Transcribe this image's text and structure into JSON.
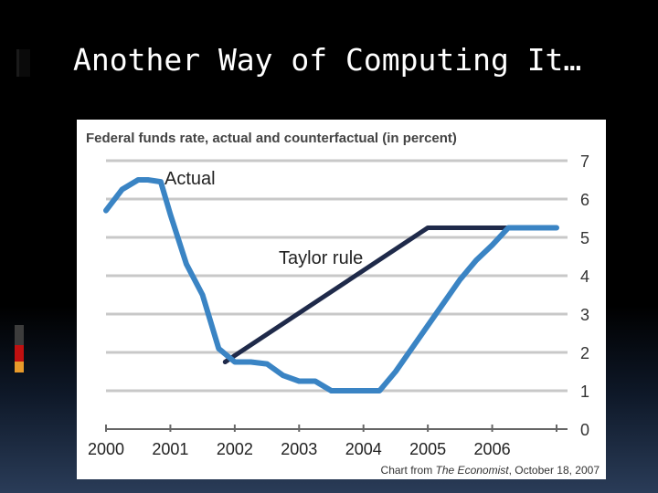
{
  "slide": {
    "title": "Another Way of Computing It…"
  },
  "colors": {
    "actual": "#3a84c4",
    "taylor": "#1f2a4a",
    "grid": "#c8c8c8",
    "accent_bar_top": "#3c3c3c",
    "accent_bar_red": "#c01010",
    "accent_bar_orange": "#e89a2a"
  },
  "chart_data": {
    "type": "line",
    "title": "Federal funds rate, actual and counterfactual (in percent)",
    "xlabel": "",
    "ylabel": "",
    "xlim": [
      2000,
      2007
    ],
    "ylim": [
      0,
      7
    ],
    "yticks": [
      0,
      1,
      2,
      3,
      4,
      5,
      6,
      7
    ],
    "xtick_labels": [
      "2000",
      "2001",
      "2002",
      "2003",
      "2004",
      "2005",
      "2006"
    ],
    "grid": true,
    "series": [
      {
        "name": "Actual",
        "x": [
          2000.0,
          2000.25,
          2000.5,
          2000.65,
          2000.85,
          2001.0,
          2001.25,
          2001.5,
          2001.75,
          2002.0,
          2002.25,
          2002.5,
          2002.75,
          2003.0,
          2003.25,
          2003.5,
          2003.75,
          2004.0,
          2004.25,
          2004.5,
          2004.75,
          2005.0,
          2005.25,
          2005.5,
          2005.75,
          2006.0,
          2006.25,
          2006.5,
          2006.75,
          2007.0
        ],
        "y": [
          5.7,
          6.25,
          6.5,
          6.5,
          6.45,
          5.6,
          4.3,
          3.5,
          2.1,
          1.75,
          1.75,
          1.7,
          1.4,
          1.25,
          1.25,
          1.0,
          1.0,
          1.0,
          1.0,
          1.5,
          2.1,
          2.7,
          3.3,
          3.9,
          4.4,
          4.8,
          5.25,
          5.25,
          5.25,
          5.25
        ]
      },
      {
        "name": "Taylor rule",
        "x": [
          2001.85,
          2005.0,
          2007.0
        ],
        "y": [
          1.75,
          5.25,
          5.25
        ]
      }
    ],
    "source": "Chart from The Economist, October 18, 2007",
    "source_parts": {
      "prefix": "Chart from ",
      "publication": "The Economist",
      "suffix": ", October 18, 2007"
    }
  }
}
